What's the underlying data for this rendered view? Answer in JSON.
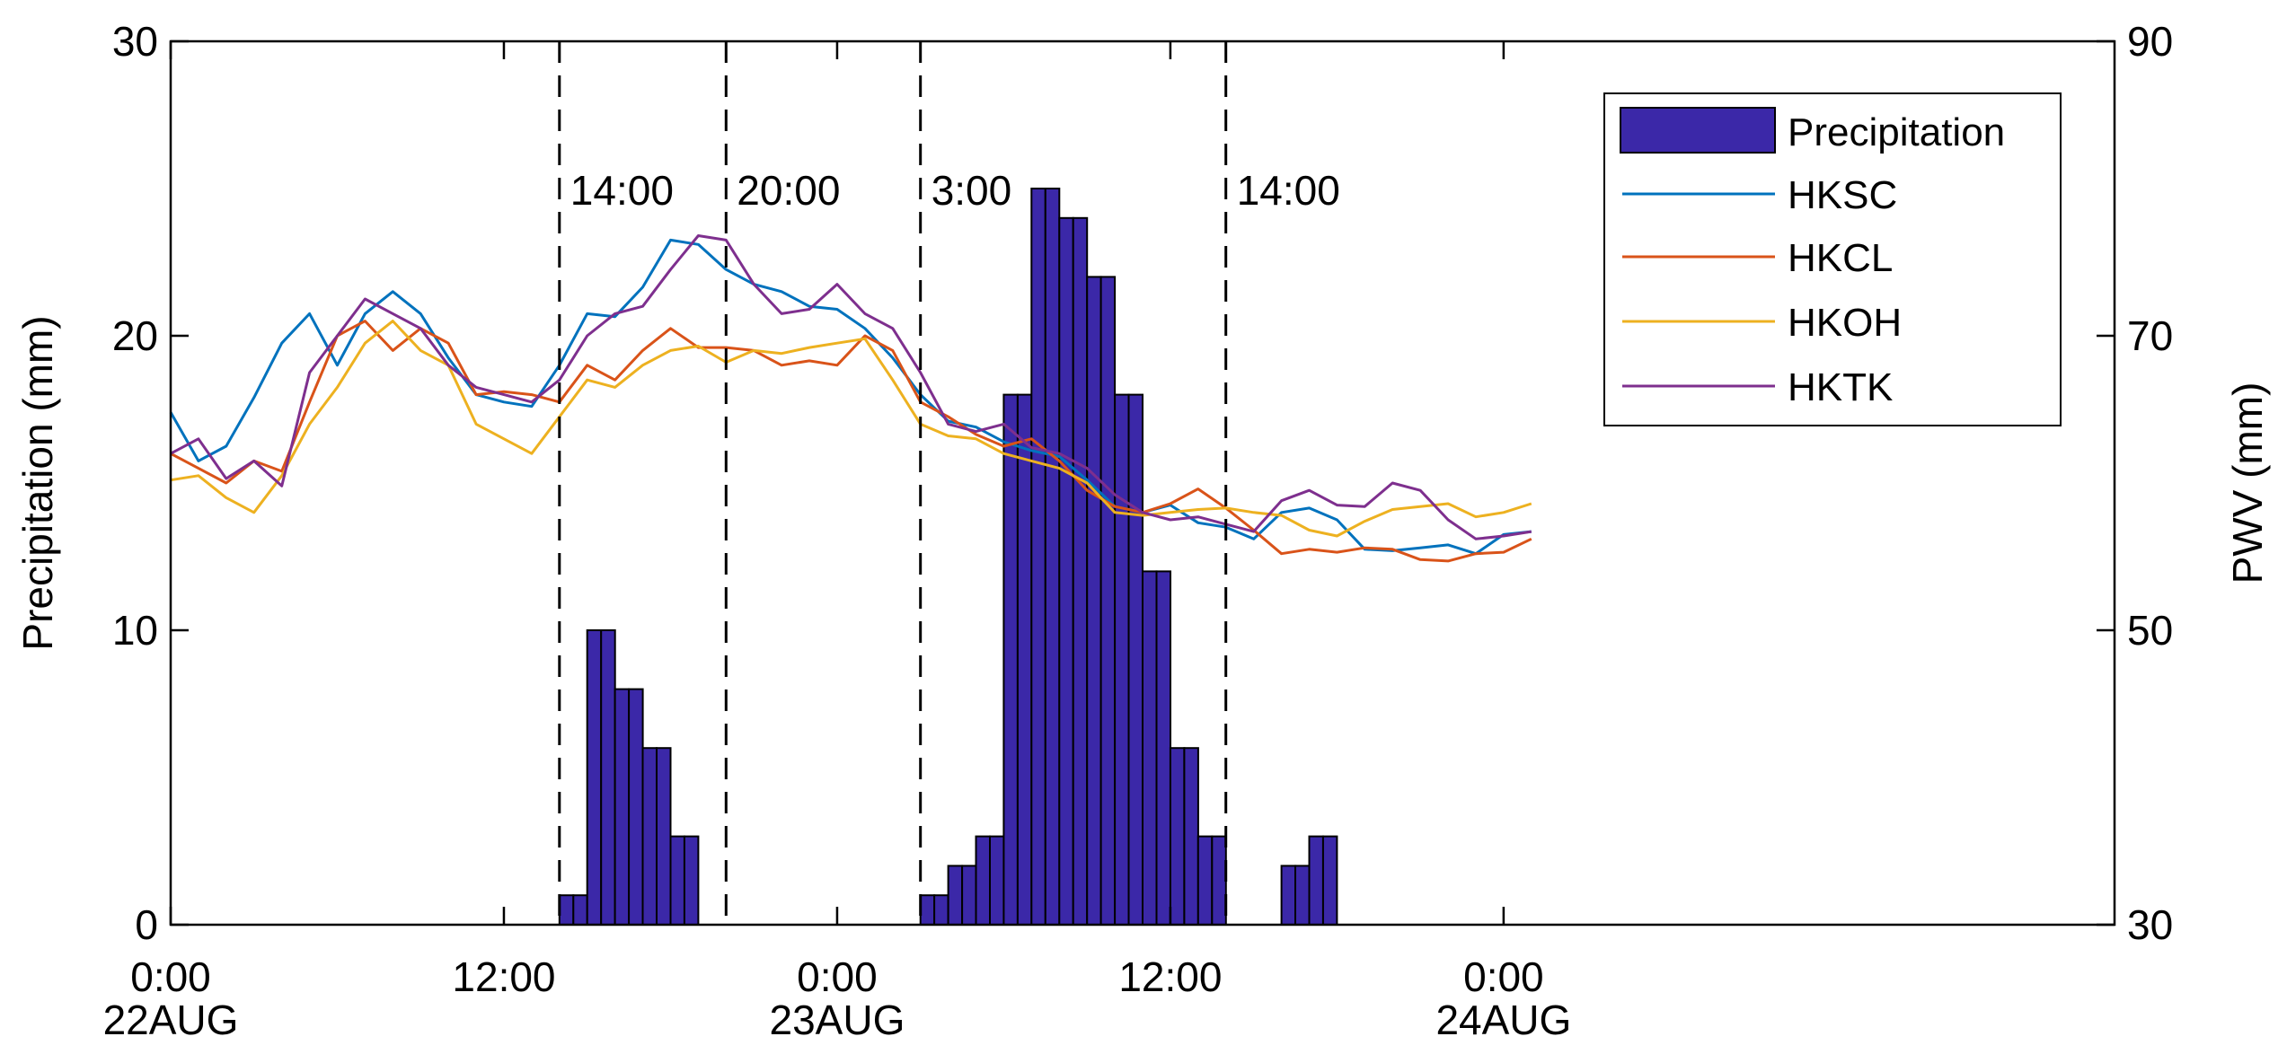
{
  "chart_data": {
    "type": "bar+line",
    "ylabel_left": "Precipitation (mm)",
    "ylabel_right": "PWV (mm)",
    "ylim_left": [
      0,
      30
    ],
    "ylim_right": [
      30,
      90
    ],
    "yticks_left": [
      0,
      10,
      20,
      30
    ],
    "yticks_right": [
      30,
      50,
      70,
      90
    ],
    "xlim_hours": [
      0,
      70
    ],
    "xticks": [
      {
        "h": 0,
        "label": "0:00",
        "sub": "22AUG"
      },
      {
        "h": 12,
        "label": "12:00",
        "sub": ""
      },
      {
        "h": 24,
        "label": "0:00",
        "sub": "23AUG"
      },
      {
        "h": 36,
        "label": "12:00",
        "sub": ""
      },
      {
        "h": 48,
        "label": "0:00",
        "sub": "24AUG"
      }
    ],
    "event_lines": [
      {
        "h": 14,
        "label": "14:00"
      },
      {
        "h": 20,
        "label": "20:00"
      },
      {
        "h": 27,
        "label": "3:00"
      },
      {
        "h": 38,
        "label": "14:00"
      }
    ],
    "legend_position": "top-right",
    "grid": false,
    "colors": {
      "precipitation": "#3B28A8",
      "HKSC": "#0072BD",
      "HKCL": "#D95319",
      "HKOH": "#EDB120",
      "HKTK": "#7E2F8E"
    },
    "precipitation": {
      "name": "Precipitation",
      "hours": [
        14,
        15,
        16,
        17,
        18,
        27,
        28,
        29,
        30,
        31,
        32,
        33,
        34,
        35,
        36,
        37,
        40,
        41
      ],
      "values": [
        1,
        10,
        8,
        6,
        3,
        1,
        2,
        3,
        18,
        25,
        24,
        22,
        18,
        12,
        6,
        3,
        2,
        3
      ]
    },
    "series": [
      {
        "name": "HKSC",
        "hours": [
          0,
          1,
          2,
          3,
          4,
          5,
          6,
          7,
          8,
          9,
          10,
          11,
          12,
          13,
          14,
          15,
          16,
          17,
          18,
          19,
          20,
          21,
          22,
          23,
          24,
          25,
          26,
          27,
          28,
          29,
          30,
          31,
          32,
          33,
          34,
          35,
          36,
          37,
          38,
          39,
          40,
          41,
          42,
          43,
          44,
          45,
          46,
          47,
          48,
          49
        ],
        "values": [
          64.8,
          61.5,
          62.5,
          65.8,
          69.5,
          71.5,
          68,
          71.5,
          73,
          71.5,
          68.5,
          66,
          65.5,
          65.2,
          68,
          71.5,
          71.3,
          73.3,
          76.5,
          76.2,
          74.5,
          73.5,
          73,
          72,
          71.8,
          70.5,
          68.5,
          66,
          64.2,
          63.8,
          62.8,
          62.2,
          61.8,
          60.2,
          58.4,
          58,
          58.5,
          57.3,
          57,
          56.2,
          58,
          58.3,
          57.5,
          55.5,
          55.4,
          55.6,
          55.8,
          55.2,
          56.5,
          56.7
        ]
      },
      {
        "name": "HKCL",
        "hours": [
          0,
          1,
          2,
          3,
          4,
          5,
          6,
          7,
          8,
          9,
          10,
          11,
          12,
          13,
          14,
          15,
          16,
          17,
          18,
          19,
          20,
          21,
          22,
          23,
          24,
          25,
          26,
          27,
          28,
          29,
          30,
          31,
          32,
          33,
          34,
          35,
          36,
          37,
          38,
          39,
          40,
          41,
          42,
          43,
          44,
          45,
          46,
          47,
          48,
          49
        ],
        "values": [
          62,
          61,
          60,
          61.5,
          60.8,
          65.5,
          70,
          71,
          69,
          70.5,
          69.5,
          66,
          66.2,
          66,
          65.5,
          68,
          67,
          69,
          70.5,
          69.2,
          69.2,
          69,
          68,
          68.3,
          68,
          70,
          69,
          65.5,
          64.5,
          63.3,
          62.5,
          63,
          61.5,
          59.5,
          58.4,
          58,
          58.6,
          59.6,
          58.3,
          56.8,
          55.2,
          55.5,
          55.3,
          55.6,
          55.5,
          54.8,
          54.7,
          55.2,
          55.3,
          56.2
        ]
      },
      {
        "name": "HKOH",
        "hours": [
          0,
          1,
          2,
          3,
          4,
          5,
          6,
          7,
          8,
          9,
          10,
          11,
          12,
          13,
          14,
          15,
          16,
          17,
          18,
          19,
          20,
          21,
          22,
          23,
          24,
          25,
          26,
          27,
          28,
          29,
          30,
          31,
          32,
          33,
          34,
          35,
          36,
          37,
          38,
          39,
          40,
          41,
          42,
          43,
          44,
          45,
          46,
          47,
          48,
          49
        ],
        "values": [
          60.2,
          60.5,
          59,
          58,
          60.5,
          64,
          66.5,
          69.5,
          71,
          69,
          68,
          64,
          63,
          62,
          64.5,
          67,
          66.5,
          68,
          69,
          69.3,
          68.2,
          69,
          68.8,
          69.2,
          69.5,
          69.8,
          67,
          64,
          63.2,
          63,
          62,
          61.5,
          61,
          60,
          58,
          57.8,
          58,
          58.2,
          58.3,
          58,
          57.8,
          56.8,
          56.4,
          57.4,
          58.2,
          58.4,
          58.6,
          57.7,
          58,
          58.6
        ]
      },
      {
        "name": "HKTK",
        "hours": [
          0,
          1,
          2,
          3,
          4,
          5,
          6,
          7,
          8,
          9,
          10,
          11,
          12,
          13,
          14,
          15,
          16,
          17,
          18,
          19,
          20,
          21,
          22,
          23,
          24,
          25,
          26,
          27,
          28,
          29,
          30,
          31,
          32,
          33,
          34,
          35,
          36,
          37,
          38,
          39,
          40,
          41,
          42,
          43,
          44,
          45,
          46,
          47,
          48,
          49
        ],
        "values": [
          62,
          63,
          60.3,
          61.5,
          59.8,
          67.5,
          70,
          72.5,
          71.5,
          70.5,
          68,
          66.5,
          66,
          65.5,
          67,
          70,
          71.5,
          72,
          74.5,
          76.8,
          76.5,
          73.5,
          71.5,
          71.8,
          73.5,
          71.5,
          70.5,
          67.5,
          64,
          63.5,
          64,
          62.4,
          62,
          61,
          59.2,
          58,
          57.5,
          57.7,
          57.2,
          56.7,
          58.8,
          59.5,
          58.5,
          58.4,
          60,
          59.5,
          57.5,
          56.2,
          56.4,
          56.7
        ]
      }
    ]
  }
}
